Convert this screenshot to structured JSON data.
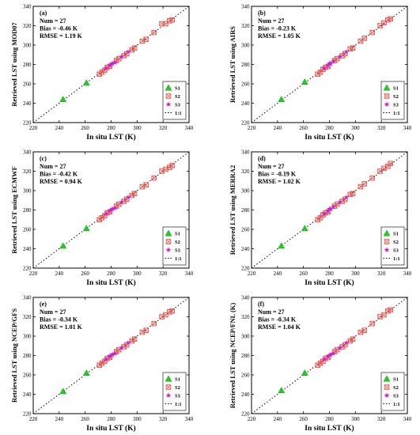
{
  "figure": {
    "x_label": "In situ LST (K)",
    "legend": [
      "S1",
      "S2",
      "S3",
      "1:1"
    ],
    "series_colors": {
      "S1": "#22cc22",
      "S2": "#e8504a",
      "S3": "#cc22cc",
      "one_to_one": "#000000"
    }
  },
  "chart_data": [
    {
      "type": "scatter",
      "panel": "(a)",
      "ylabel": "Retrieved LST using MOD07",
      "xlabel": "In situ LST (K)",
      "xlim": [
        220,
        340
      ],
      "ylim": [
        220,
        340
      ],
      "ticks": [
        220,
        240,
        260,
        280,
        300,
        320,
        340
      ],
      "stats": [
        "Num = 27",
        "Bias = -0.46 K",
        "RMSE = 1.19 K"
      ],
      "series": [
        {
          "name": "S1",
          "marker": "triangle",
          "points": [
            [
              243,
              244
            ],
            [
              261,
              261
            ]
          ]
        },
        {
          "name": "S2",
          "marker": "square-x",
          "points": [
            [
              271,
              270
            ],
            [
              273,
              272
            ],
            [
              275,
              274
            ],
            [
              277,
              277
            ],
            [
              279,
              278
            ],
            [
              284,
              284
            ],
            [
              286,
              286
            ],
            [
              290,
              289
            ],
            [
              292,
              291
            ],
            [
              296,
              295
            ],
            [
              298,
              297
            ],
            [
              304,
              304
            ],
            [
              307,
              306
            ],
            [
              313,
              313
            ],
            [
              319,
              322
            ],
            [
              322,
              322
            ],
            [
              325,
              325
            ],
            [
              327,
              326
            ]
          ]
        },
        {
          "name": "S3",
          "marker": "star",
          "points": [
            [
              276,
              276
            ],
            [
              279,
              279
            ],
            [
              280,
              280
            ],
            [
              281,
              281
            ],
            [
              283,
              282
            ],
            [
              288,
              288
            ],
            [
              293,
              293
            ]
          ]
        }
      ]
    },
    {
      "type": "scatter",
      "panel": "(b)",
      "ylabel": "Retrieved LST using AIRS",
      "xlabel": "In situ LST (K)",
      "xlim": [
        220,
        340
      ],
      "ylim": [
        220,
        340
      ],
      "ticks": [
        220,
        240,
        260,
        280,
        300,
        320,
        340
      ],
      "stats": [
        "Num = 27",
        "Bias = -0.23 K",
        "RMSE = 1.05 K"
      ],
      "series": [
        {
          "name": "S1",
          "marker": "triangle",
          "points": [
            [
              243,
              244
            ],
            [
              261,
              262
            ]
          ]
        },
        {
          "name": "S2",
          "marker": "square-x",
          "points": [
            [
              271,
              270
            ],
            [
              273,
              272
            ],
            [
              275,
              275
            ],
            [
              277,
              277
            ],
            [
              279,
              278
            ],
            [
              284,
              284
            ],
            [
              286,
              286
            ],
            [
              290,
              289
            ],
            [
              292,
              291
            ],
            [
              296,
              296
            ],
            [
              298,
              297
            ],
            [
              304,
              304
            ],
            [
              307,
              307
            ],
            [
              313,
              313
            ],
            [
              319,
              320
            ],
            [
              322,
              323
            ],
            [
              325,
              326
            ],
            [
              327,
              327
            ]
          ]
        },
        {
          "name": "S3",
          "marker": "star",
          "points": [
            [
              276,
              276
            ],
            [
              279,
              279
            ],
            [
              280,
              281
            ],
            [
              281,
              281
            ],
            [
              283,
              283
            ],
            [
              288,
              288
            ],
            [
              293,
              293
            ]
          ]
        }
      ]
    },
    {
      "type": "scatter",
      "panel": "(c)",
      "ylabel": "Retrieved LST using ECMWF",
      "xlabel": "In situ LST (K)",
      "xlim": [
        220,
        340
      ],
      "ylim": [
        220,
        340
      ],
      "ticks": [
        220,
        240,
        260,
        280,
        300,
        320,
        340
      ],
      "stats": [
        "Num = 27",
        "Bias = -0.42 K",
        "RMSE = 0.94 K"
      ],
      "series": [
        {
          "name": "S1",
          "marker": "triangle",
          "points": [
            [
              243,
              243
            ],
            [
              261,
              261
            ]
          ]
        },
        {
          "name": "S2",
          "marker": "square-x",
          "points": [
            [
              271,
              270
            ],
            [
              273,
              272
            ],
            [
              275,
              274
            ],
            [
              277,
              277
            ],
            [
              279,
              278
            ],
            [
              284,
              284
            ],
            [
              286,
              286
            ],
            [
              290,
              289
            ],
            [
              292,
              291
            ],
            [
              296,
              295
            ],
            [
              298,
              297
            ],
            [
              304,
              304
            ],
            [
              307,
              306
            ],
            [
              313,
              313
            ],
            [
              319,
              320
            ],
            [
              322,
              322
            ],
            [
              325,
              324
            ],
            [
              327,
              326
            ]
          ]
        },
        {
          "name": "S3",
          "marker": "star",
          "points": [
            [
              276,
              276
            ],
            [
              279,
              279
            ],
            [
              280,
              280
            ],
            [
              281,
              281
            ],
            [
              283,
              282
            ],
            [
              288,
              288
            ],
            [
              293,
              293
            ]
          ]
        }
      ]
    },
    {
      "type": "scatter",
      "panel": "(d)",
      "ylabel": "Retrieved LST using MERRA2",
      "xlabel": "In situ LST (K)",
      "xlim": [
        220,
        340
      ],
      "ylim": [
        220,
        340
      ],
      "ticks": [
        220,
        240,
        260,
        280,
        300,
        320,
        340
      ],
      "stats": [
        "Num = 27",
        "Bias = -0.19 K",
        "RMSE = 1.02 K"
      ],
      "series": [
        {
          "name": "S1",
          "marker": "triangle",
          "points": [
            [
              243,
              243
            ],
            [
              261,
              261
            ]
          ]
        },
        {
          "name": "S2",
          "marker": "square-x",
          "points": [
            [
              271,
              270
            ],
            [
              273,
              272
            ],
            [
              275,
              275
            ],
            [
              277,
              277
            ],
            [
              279,
              278
            ],
            [
              284,
              284
            ],
            [
              286,
              286
            ],
            [
              290,
              289
            ],
            [
              292,
              291
            ],
            [
              296,
              296
            ],
            [
              298,
              297
            ],
            [
              304,
              304
            ],
            [
              307,
              307
            ],
            [
              313,
              313
            ],
            [
              319,
              320
            ],
            [
              322,
              323
            ],
            [
              325,
              325
            ],
            [
              327,
              328
            ]
          ]
        },
        {
          "name": "S3",
          "marker": "star",
          "points": [
            [
              276,
              276
            ],
            [
              279,
              279
            ],
            [
              280,
              281
            ],
            [
              281,
              281
            ],
            [
              283,
              283
            ],
            [
              288,
              288
            ],
            [
              293,
              293
            ]
          ]
        }
      ]
    },
    {
      "type": "scatter",
      "panel": "(e)",
      "ylabel": "Retrieved LST using NCEP/GFS",
      "xlabel": "In situ LST (K)",
      "xlim": [
        220,
        340
      ],
      "ylim": [
        220,
        340
      ],
      "ticks": [
        220,
        240,
        260,
        280,
        300,
        320,
        340
      ],
      "stats": [
        "Num = 27",
        "Bias = -0.34 K",
        "RMSE = 1.01 K"
      ],
      "series": [
        {
          "name": "S1",
          "marker": "triangle",
          "points": [
            [
              243,
              243
            ],
            [
              261,
              262
            ]
          ]
        },
        {
          "name": "S2",
          "marker": "square-x",
          "points": [
            [
              271,
              270
            ],
            [
              273,
              272
            ],
            [
              275,
              274
            ],
            [
              277,
              277
            ],
            [
              279,
              278
            ],
            [
              284,
              284
            ],
            [
              286,
              286
            ],
            [
              290,
              289
            ],
            [
              292,
              291
            ],
            [
              296,
              295
            ],
            [
              298,
              297
            ],
            [
              304,
              304
            ],
            [
              307,
              306
            ],
            [
              313,
              313
            ],
            [
              319,
              320
            ],
            [
              322,
              322
            ],
            [
              325,
              325
            ],
            [
              327,
              326
            ]
          ]
        },
        {
          "name": "S3",
          "marker": "star",
          "points": [
            [
              276,
              276
            ],
            [
              279,
              279
            ],
            [
              280,
              280
            ],
            [
              281,
              281
            ],
            [
              283,
              282
            ],
            [
              288,
              288
            ],
            [
              293,
              293
            ]
          ]
        }
      ]
    },
    {
      "type": "scatter",
      "panel": "(f)",
      "ylabel": "Retrieved LST using NCEP/FNL (K)",
      "xlabel": "In situ LST (K)",
      "xlim": [
        220,
        340
      ],
      "ylim": [
        220,
        340
      ],
      "ticks": [
        220,
        240,
        260,
        280,
        300,
        320,
        340
      ],
      "stats": [
        "Num = 27",
        "Bias = -0.34 K",
        "RMSE = 1.04 K"
      ],
      "series": [
        {
          "name": "S1",
          "marker": "triangle",
          "points": [
            [
              243,
              244
            ],
            [
              261,
              262
            ]
          ]
        },
        {
          "name": "S2",
          "marker": "square-x",
          "points": [
            [
              271,
              270
            ],
            [
              273,
              272
            ],
            [
              275,
              274
            ],
            [
              277,
              277
            ],
            [
              279,
              278
            ],
            [
              284,
              284
            ],
            [
              286,
              286
            ],
            [
              290,
              289
            ],
            [
              292,
              291
            ],
            [
              296,
              295
            ],
            [
              298,
              297
            ],
            [
              304,
              304
            ],
            [
              307,
              306
            ],
            [
              313,
              313
            ],
            [
              319,
              320
            ],
            [
              322,
              322
            ],
            [
              325,
              326
            ],
            [
              327,
              327
            ]
          ]
        },
        {
          "name": "S3",
          "marker": "star",
          "points": [
            [
              276,
              276
            ],
            [
              279,
              279
            ],
            [
              280,
              280
            ],
            [
              281,
              281
            ],
            [
              283,
              282
            ],
            [
              288,
              288
            ],
            [
              293,
              293
            ]
          ]
        }
      ]
    }
  ]
}
